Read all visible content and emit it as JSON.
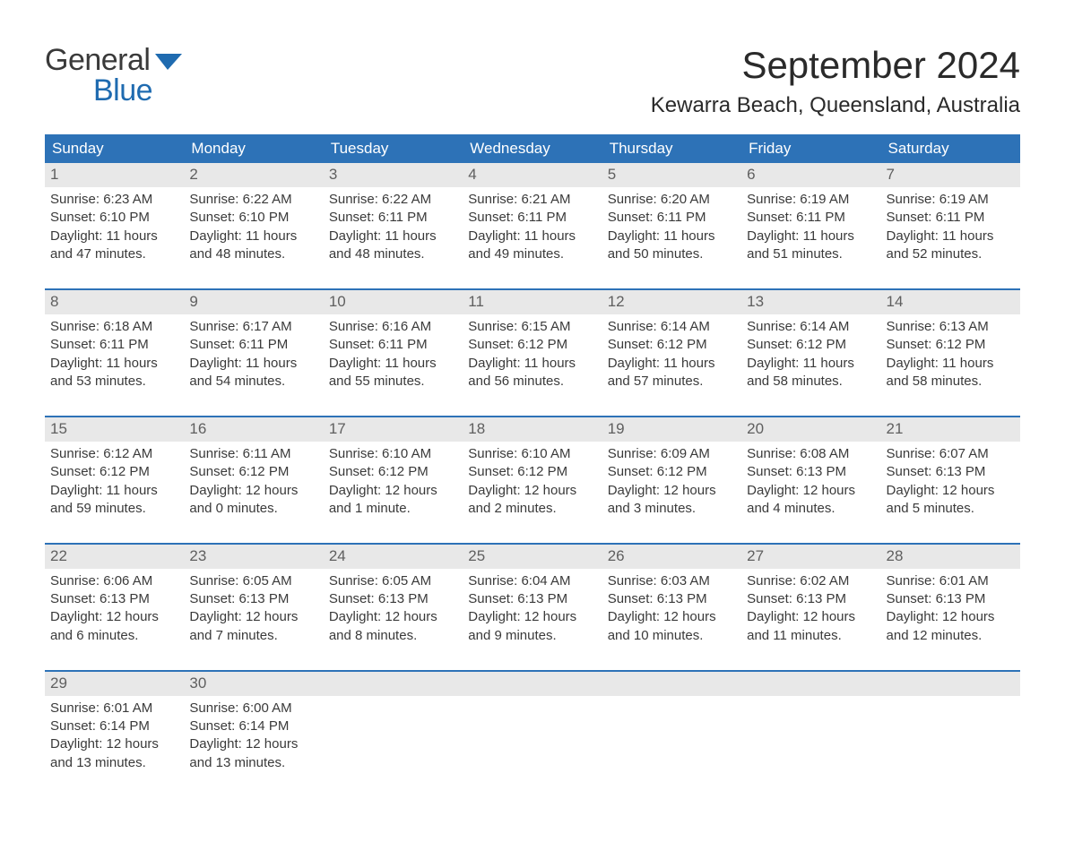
{
  "brand": {
    "line1": "General",
    "line2": "Blue",
    "text_color": "#3a3a3a",
    "accent_color": "#1f6bb0"
  },
  "title": "September 2024",
  "location": "Kewarra Beach, Queensland, Australia",
  "header_bg": "#2d72b7",
  "header_fg": "#ffffff",
  "daynum_bg": "#e8e8e8",
  "daynum_fg": "#5f5f5f",
  "divider_color": "#2d72b7",
  "page_bg": "#ffffff",
  "text_color": "#3a3a3a",
  "title_fontsize": 42,
  "location_fontsize": 24,
  "header_fontsize": 17,
  "body_fontsize": 15,
  "day_headers": [
    "Sunday",
    "Monday",
    "Tuesday",
    "Wednesday",
    "Thursday",
    "Friday",
    "Saturday"
  ],
  "weeks": [
    [
      {
        "day": "1",
        "sunrise": "Sunrise: 6:23 AM",
        "sunset": "Sunset: 6:10 PM",
        "dl1": "Daylight: 11 hours",
        "dl2": "and 47 minutes."
      },
      {
        "day": "2",
        "sunrise": "Sunrise: 6:22 AM",
        "sunset": "Sunset: 6:10 PM",
        "dl1": "Daylight: 11 hours",
        "dl2": "and 48 minutes."
      },
      {
        "day": "3",
        "sunrise": "Sunrise: 6:22 AM",
        "sunset": "Sunset: 6:11 PM",
        "dl1": "Daylight: 11 hours",
        "dl2": "and 48 minutes."
      },
      {
        "day": "4",
        "sunrise": "Sunrise: 6:21 AM",
        "sunset": "Sunset: 6:11 PM",
        "dl1": "Daylight: 11 hours",
        "dl2": "and 49 minutes."
      },
      {
        "day": "5",
        "sunrise": "Sunrise: 6:20 AM",
        "sunset": "Sunset: 6:11 PM",
        "dl1": "Daylight: 11 hours",
        "dl2": "and 50 minutes."
      },
      {
        "day": "6",
        "sunrise": "Sunrise: 6:19 AM",
        "sunset": "Sunset: 6:11 PM",
        "dl1": "Daylight: 11 hours",
        "dl2": "and 51 minutes."
      },
      {
        "day": "7",
        "sunrise": "Sunrise: 6:19 AM",
        "sunset": "Sunset: 6:11 PM",
        "dl1": "Daylight: 11 hours",
        "dl2": "and 52 minutes."
      }
    ],
    [
      {
        "day": "8",
        "sunrise": "Sunrise: 6:18 AM",
        "sunset": "Sunset: 6:11 PM",
        "dl1": "Daylight: 11 hours",
        "dl2": "and 53 minutes."
      },
      {
        "day": "9",
        "sunrise": "Sunrise: 6:17 AM",
        "sunset": "Sunset: 6:11 PM",
        "dl1": "Daylight: 11 hours",
        "dl2": "and 54 minutes."
      },
      {
        "day": "10",
        "sunrise": "Sunrise: 6:16 AM",
        "sunset": "Sunset: 6:11 PM",
        "dl1": "Daylight: 11 hours",
        "dl2": "and 55 minutes."
      },
      {
        "day": "11",
        "sunrise": "Sunrise: 6:15 AM",
        "sunset": "Sunset: 6:12 PM",
        "dl1": "Daylight: 11 hours",
        "dl2": "and 56 minutes."
      },
      {
        "day": "12",
        "sunrise": "Sunrise: 6:14 AM",
        "sunset": "Sunset: 6:12 PM",
        "dl1": "Daylight: 11 hours",
        "dl2": "and 57 minutes."
      },
      {
        "day": "13",
        "sunrise": "Sunrise: 6:14 AM",
        "sunset": "Sunset: 6:12 PM",
        "dl1": "Daylight: 11 hours",
        "dl2": "and 58 minutes."
      },
      {
        "day": "14",
        "sunrise": "Sunrise: 6:13 AM",
        "sunset": "Sunset: 6:12 PM",
        "dl1": "Daylight: 11 hours",
        "dl2": "and 58 minutes."
      }
    ],
    [
      {
        "day": "15",
        "sunrise": "Sunrise: 6:12 AM",
        "sunset": "Sunset: 6:12 PM",
        "dl1": "Daylight: 11 hours",
        "dl2": "and 59 minutes."
      },
      {
        "day": "16",
        "sunrise": "Sunrise: 6:11 AM",
        "sunset": "Sunset: 6:12 PM",
        "dl1": "Daylight: 12 hours",
        "dl2": "and 0 minutes."
      },
      {
        "day": "17",
        "sunrise": "Sunrise: 6:10 AM",
        "sunset": "Sunset: 6:12 PM",
        "dl1": "Daylight: 12 hours",
        "dl2": "and 1 minute."
      },
      {
        "day": "18",
        "sunrise": "Sunrise: 6:10 AM",
        "sunset": "Sunset: 6:12 PM",
        "dl1": "Daylight: 12 hours",
        "dl2": "and 2 minutes."
      },
      {
        "day": "19",
        "sunrise": "Sunrise: 6:09 AM",
        "sunset": "Sunset: 6:12 PM",
        "dl1": "Daylight: 12 hours",
        "dl2": "and 3 minutes."
      },
      {
        "day": "20",
        "sunrise": "Sunrise: 6:08 AM",
        "sunset": "Sunset: 6:13 PM",
        "dl1": "Daylight: 12 hours",
        "dl2": "and 4 minutes."
      },
      {
        "day": "21",
        "sunrise": "Sunrise: 6:07 AM",
        "sunset": "Sunset: 6:13 PM",
        "dl1": "Daylight: 12 hours",
        "dl2": "and 5 minutes."
      }
    ],
    [
      {
        "day": "22",
        "sunrise": "Sunrise: 6:06 AM",
        "sunset": "Sunset: 6:13 PM",
        "dl1": "Daylight: 12 hours",
        "dl2": "and 6 minutes."
      },
      {
        "day": "23",
        "sunrise": "Sunrise: 6:05 AM",
        "sunset": "Sunset: 6:13 PM",
        "dl1": "Daylight: 12 hours",
        "dl2": "and 7 minutes."
      },
      {
        "day": "24",
        "sunrise": "Sunrise: 6:05 AM",
        "sunset": "Sunset: 6:13 PM",
        "dl1": "Daylight: 12 hours",
        "dl2": "and 8 minutes."
      },
      {
        "day": "25",
        "sunrise": "Sunrise: 6:04 AM",
        "sunset": "Sunset: 6:13 PM",
        "dl1": "Daylight: 12 hours",
        "dl2": "and 9 minutes."
      },
      {
        "day": "26",
        "sunrise": "Sunrise: 6:03 AM",
        "sunset": "Sunset: 6:13 PM",
        "dl1": "Daylight: 12 hours",
        "dl2": "and 10 minutes."
      },
      {
        "day": "27",
        "sunrise": "Sunrise: 6:02 AM",
        "sunset": "Sunset: 6:13 PM",
        "dl1": "Daylight: 12 hours",
        "dl2": "and 11 minutes."
      },
      {
        "day": "28",
        "sunrise": "Sunrise: 6:01 AM",
        "sunset": "Sunset: 6:13 PM",
        "dl1": "Daylight: 12 hours",
        "dl2": "and 12 minutes."
      }
    ],
    [
      {
        "day": "29",
        "sunrise": "Sunrise: 6:01 AM",
        "sunset": "Sunset: 6:14 PM",
        "dl1": "Daylight: 12 hours",
        "dl2": "and 13 minutes."
      },
      {
        "day": "30",
        "sunrise": "Sunrise: 6:00 AM",
        "sunset": "Sunset: 6:14 PM",
        "dl1": "Daylight: 12 hours",
        "dl2": "and 13 minutes."
      },
      null,
      null,
      null,
      null,
      null
    ]
  ]
}
